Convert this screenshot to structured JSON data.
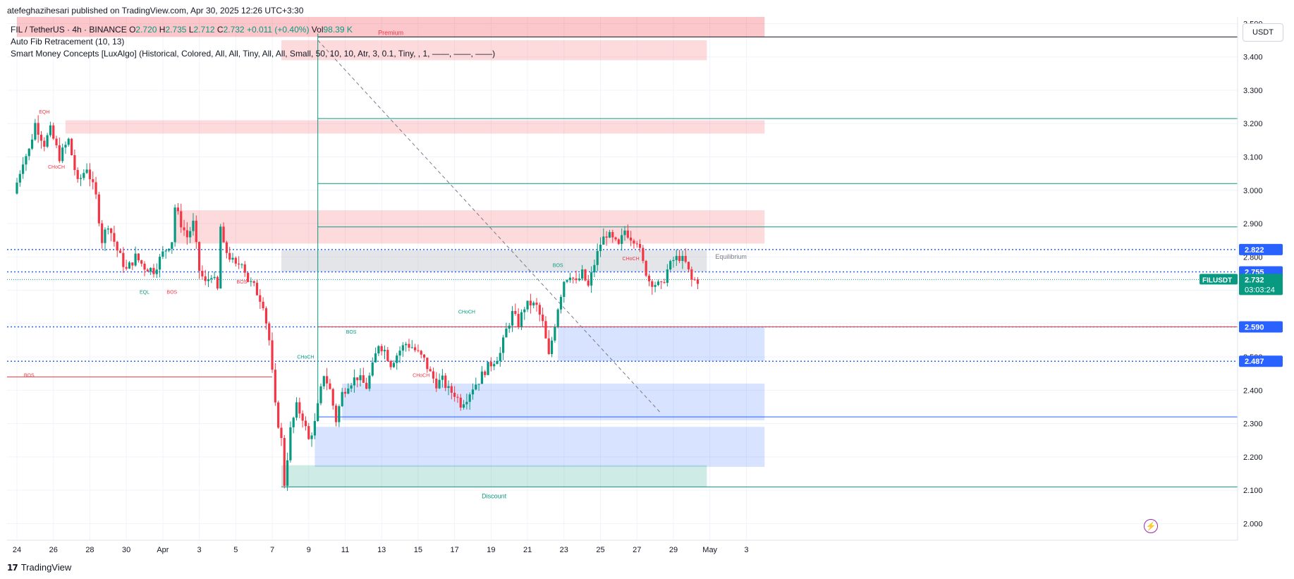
{
  "header": {
    "publisher_line": "atefeghazihesari published on TradingView.com, Apr 30, 2025 12:26 UTC+3:30"
  },
  "legend": {
    "symbol": "FIL / TetherUS · 4h · BINANCE",
    "open_label": "O",
    "open": "2.720",
    "high_label": "H",
    "high": "2.735",
    "low_label": "L",
    "low": "2.712",
    "close_label": "C",
    "close": "2.732",
    "change": "+0.011 (+0.40%)",
    "vol_label": "Vol",
    "vol": "98.39 K",
    "indicator_1": "Auto Fib Retracement (10, 13)",
    "indicator_2": "Smart Money Concepts [LuxAlgo] (Historical, Colored, All, All, Tiny, All, All, Small, 50, 10, 10, Atr, 3, 0.1, Tiny, , 1, ——, ——, ——)"
  },
  "currency": "USDT",
  "footer": {
    "brand": "TradingView",
    "logo_glyph": "17"
  },
  "colors": {
    "up": "#089981",
    "down": "#f23645",
    "premium_zone": "#f23645",
    "discount_zone": "#089981",
    "demand_block": "#2962ff",
    "axis_text": "#131722"
  },
  "chart_data": {
    "type": "candlestick",
    "symbol": "FILUSDT",
    "timeframe": "4h",
    "x_axis": {
      "ticks": [
        "24",
        "26",
        "28",
        "30",
        "Apr",
        "3",
        "5",
        "7",
        "9",
        "11",
        "13",
        "15",
        "17",
        "19",
        "21",
        "23",
        "25",
        "27",
        "29",
        "May",
        "3"
      ],
      "tick_bars": [
        0,
        12,
        24,
        36,
        48,
        60,
        72,
        84,
        96,
        108,
        120,
        132,
        144,
        156,
        168,
        180,
        192,
        204,
        216,
        228,
        240
      ]
    },
    "y_axis": {
      "ylim": [
        1.95,
        3.52
      ],
      "ticks": [
        2.0,
        2.1,
        2.2,
        2.3,
        2.4,
        2.5,
        2.6,
        2.7,
        2.8,
        2.9,
        3.0,
        3.1,
        3.2,
        3.3,
        3.4,
        3.5
      ],
      "tick_labels": [
        "2.000",
        "2.100",
        "2.200",
        "2.300",
        "2.400",
        "2.500",
        "2.600",
        "2.700",
        "2.800",
        "2.900",
        "3.000",
        "3.100",
        "3.200",
        "3.300",
        "3.400",
        "3.500"
      ]
    },
    "price_labels": [
      {
        "value": 2.822,
        "text": "2.822",
        "color": "#2962ff"
      },
      {
        "value": 2.755,
        "text": "2.755",
        "color": "#2962ff"
      },
      {
        "value": 2.732,
        "text": "2.732",
        "sub": "03:03:24",
        "name": "FILUSDT",
        "color": "#089981"
      },
      {
        "value": 2.59,
        "text": "2.590",
        "color": "#2962ff"
      },
      {
        "value": 2.487,
        "text": "2.487",
        "color": "#2962ff"
      }
    ],
    "anchors": [
      [
        0,
        2.99
      ],
      [
        3,
        3.09
      ],
      [
        5,
        3.12
      ],
      [
        7,
        3.2
      ],
      [
        10,
        3.14
      ],
      [
        12,
        3.18
      ],
      [
        15,
        3.1
      ],
      [
        18,
        3.15
      ],
      [
        21,
        3.02
      ],
      [
        24,
        3.07
      ],
      [
        27,
        2.98
      ],
      [
        29,
        2.85
      ],
      [
        31,
        2.9
      ],
      [
        34,
        2.82
      ],
      [
        37,
        2.76
      ],
      [
        40,
        2.8
      ],
      [
        43,
        2.77
      ],
      [
        46,
        2.76
      ],
      [
        49,
        2.81
      ],
      [
        52,
        2.85
      ],
      [
        53,
        2.95
      ],
      [
        55,
        2.9
      ],
      [
        57,
        2.86
      ],
      [
        59,
        2.9
      ],
      [
        61,
        2.76
      ],
      [
        63,
        2.72
      ],
      [
        65,
        2.75
      ],
      [
        67,
        2.7
      ],
      [
        68,
        2.89
      ],
      [
        69,
        2.83
      ],
      [
        71,
        2.8
      ],
      [
        73,
        2.77
      ],
      [
        75,
        2.79
      ],
      [
        77,
        2.73
      ],
      [
        79,
        2.71
      ],
      [
        82,
        2.66
      ],
      [
        84,
        2.55
      ],
      [
        86,
        2.35
      ],
      [
        88,
        2.25
      ],
      [
        89,
        2.12
      ],
      [
        91,
        2.28
      ],
      [
        93,
        2.35
      ],
      [
        95,
        2.32
      ],
      [
        97,
        2.25
      ],
      [
        99,
        2.3
      ],
      [
        102,
        2.45
      ],
      [
        104,
        2.4
      ],
      [
        106,
        2.31
      ],
      [
        108,
        2.39
      ],
      [
        110,
        2.42
      ],
      [
        113,
        2.44
      ],
      [
        116,
        2.41
      ],
      [
        118,
        2.47
      ],
      [
        120,
        2.54
      ],
      [
        122,
        2.52
      ],
      [
        124,
        2.48
      ],
      [
        127,
        2.52
      ],
      [
        129,
        2.54
      ],
      [
        131,
        2.53
      ],
      [
        133,
        2.51
      ],
      [
        135,
        2.49
      ],
      [
        137,
        2.45
      ],
      [
        139,
        2.42
      ],
      [
        141,
        2.43
      ],
      [
        143,
        2.4
      ],
      [
        145,
        2.39
      ],
      [
        147,
        2.36
      ],
      [
        149,
        2.38
      ],
      [
        151,
        2.41
      ],
      [
        153,
        2.43
      ],
      [
        155,
        2.46
      ],
      [
        158,
        2.49
      ],
      [
        160,
        2.51
      ],
      [
        162,
        2.58
      ],
      [
        164,
        2.63
      ],
      [
        166,
        2.6
      ],
      [
        168,
        2.65
      ],
      [
        170,
        2.66
      ],
      [
        172,
        2.65
      ],
      [
        174,
        2.6
      ],
      [
        175,
        2.55
      ],
      [
        176,
        2.5
      ],
      [
        177,
        2.55
      ],
      [
        179,
        2.65
      ],
      [
        181,
        2.73
      ],
      [
        183,
        2.75
      ],
      [
        185,
        2.72
      ],
      [
        187,
        2.75
      ],
      [
        189,
        2.71
      ],
      [
        191,
        2.78
      ],
      [
        193,
        2.84
      ],
      [
        195,
        2.87
      ],
      [
        197,
        2.85
      ],
      [
        199,
        2.83
      ],
      [
        201,
        2.88
      ],
      [
        203,
        2.86
      ],
      [
        205,
        2.85
      ],
      [
        207,
        2.78
      ],
      [
        209,
        2.73
      ],
      [
        211,
        2.72
      ],
      [
        213,
        2.71
      ],
      [
        215,
        2.76
      ],
      [
        217,
        2.79
      ],
      [
        219,
        2.8
      ],
      [
        221,
        2.78
      ],
      [
        223,
        2.73
      ],
      [
        225,
        2.73
      ]
    ],
    "zones": [
      {
        "label": "Premium",
        "type": "premium",
        "x": [
          0,
          246
        ],
        "y": [
          3.46,
          3.52
        ]
      },
      {
        "type": "supply",
        "x": [
          87,
          227
        ],
        "y": [
          3.39,
          3.45
        ]
      },
      {
        "type": "supply",
        "x": [
          16,
          246
        ],
        "y": [
          3.17,
          3.21
        ]
      },
      {
        "type": "supply",
        "x": [
          52,
          246
        ],
        "y": [
          2.84,
          2.94
        ]
      },
      {
        "label": "Equilibrium",
        "type": "equilibrium",
        "x": [
          87,
          227
        ],
        "y": [
          2.755,
          2.82
        ]
      },
      {
        "type": "demand",
        "x": [
          178,
          246
        ],
        "y": [
          2.487,
          2.59
        ]
      },
      {
        "type": "demand",
        "x": [
          107,
          246
        ],
        "y": [
          2.31,
          2.42
        ]
      },
      {
        "type": "demand",
        "x": [
          98,
          246
        ],
        "y": [
          2.17,
          2.29
        ]
      },
      {
        "label": "Discount",
        "type": "discount",
        "x": [
          87,
          227
        ],
        "y": [
          2.11,
          2.175
        ]
      }
    ],
    "annotations": [
      {
        "text": "EQH",
        "bar": 9,
        "y": 3.23,
        "color": "#f23645"
      },
      {
        "text": "CHoCH",
        "bar": 13,
        "y": 3.065,
        "color": "#f23645"
      },
      {
        "text": "EQL",
        "bar": 42,
        "y": 2.69,
        "color": "#089981"
      },
      {
        "text": "BOS",
        "bar": 51,
        "y": 2.69,
        "color": "#f23645"
      },
      {
        "text": "BOS",
        "bar": 74,
        "y": 2.72,
        "color": "#f23645"
      },
      {
        "text": "BOS",
        "bar": 4,
        "y": 2.44,
        "color": "#f23645"
      },
      {
        "text": "CHoCH",
        "bar": 95,
        "y": 2.495,
        "color": "#089981"
      },
      {
        "text": "BOS",
        "bar": 110,
        "y": 2.57,
        "color": "#089981"
      },
      {
        "text": "CHoCH",
        "bar": 133,
        "y": 2.44,
        "color": "#f23645"
      },
      {
        "text": "CHoCH",
        "bar": 148,
        "y": 2.63,
        "color": "#089981"
      },
      {
        "text": "BOS",
        "bar": 178,
        "y": 2.77,
        "color": "#089981"
      },
      {
        "text": "CHoCH",
        "bar": 202,
        "y": 2.79,
        "color": "#f23645"
      }
    ]
  }
}
